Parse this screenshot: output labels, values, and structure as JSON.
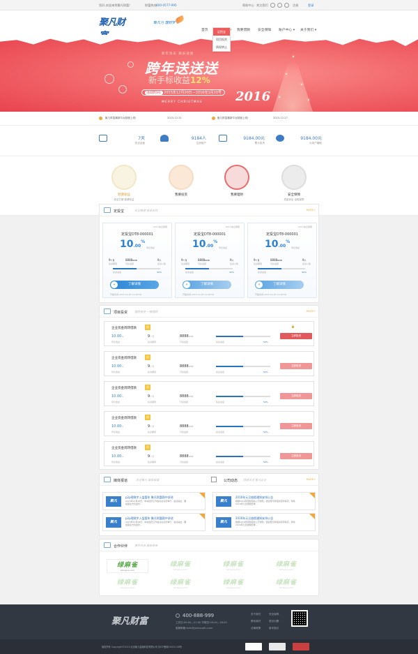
{
  "topbar": {
    "welcome": "您好,欢迎来到聚凡财富!",
    "hotline_label": "财富热线:",
    "hotline": "400-0577-995",
    "help": "帮助中心",
    "follow": "关注我们",
    "register": "注册",
    "login": "登录"
  },
  "header": {
    "logo": "聚凡财富",
    "logo_en": "JUFAN CAIFU.COM",
    "slogan": "聚凡力 理财梦",
    "menu": [
      "首页",
      "我要投资 ▾",
      "我要借款",
      "安全保障",
      "账户中心 ▾",
      "关于我们 ▾"
    ],
    "dropdown": [
      "定投宝",
      "项目投资",
      "债权转让"
    ]
  },
  "banner": {
    "small": "新年快乐 辞旧迎新",
    "title": "跨年送送送",
    "sub_prefix": "新手标收益",
    "sub_value": "12%",
    "date_label": "活动时间:",
    "date": "2015年12月20日—2016年1月20号",
    "merry": "MERRY CHRISTMAS",
    "year": "2016"
  },
  "notices": [
    {
      "text": "聚凡财富最新平台制度上线!",
      "date": "2015-12-31"
    },
    {
      "text": "聚凡财富最新平台制度上线!",
      "date": "2015-12-27"
    }
  ],
  "stats": [
    {
      "value": "7天",
      "label": "安全运营"
    },
    {
      "value": "9184人",
      "label": "注册用户"
    },
    {
      "value": "9184.00元",
      "label": "累计投资"
    },
    {
      "value": "9184.00元",
      "label": "为用户赚取"
    }
  ],
  "features": [
    {
      "title": "稳健收益",
      "desc": "安全方便 稳健收益",
      "icon": "chart-icon"
    },
    {
      "title": "我要投资",
      "desc": "",
      "icon": "coin-icon"
    },
    {
      "title": "我要理财",
      "desc": "",
      "icon": "clock-icon"
    },
    {
      "title": "安全保障",
      "desc": "资金安全 全程保障",
      "icon": "safe-icon"
    }
  ],
  "dingtou": {
    "title": "定投宝",
    "desc": "安全稳健 投资无忧",
    "more": "MORE+",
    "cards": [
      {
        "tag": "100%本息保障",
        "name": "定投宝DT8-000001",
        "rate": "10",
        "rate_dec": ".00",
        "rate_pct": "%",
        "rate_label": "年化收益",
        "term": "9",
        "term_unit": "个月",
        "amount": "8888",
        "amount_unit": "RMB",
        "people": "9",
        "people_unit": "人",
        "term_label": "投资期限",
        "amount_label": "可投金额",
        "people_label": "投资人数",
        "progress": 0.5,
        "pct": "50%",
        "progress_label": "投资进度",
        "btn": "了解详情",
        "time": "开始时间:2015-10-30 11:58:58"
      },
      {
        "tag": "100%本息保障",
        "name": "定投宝DT8-000001",
        "rate": "10",
        "rate_dec": ".00",
        "rate_pct": "%",
        "rate_label": "年化收益",
        "term": "9",
        "term_unit": "个月",
        "amount": "8888",
        "amount_unit": "RMB",
        "people": "9",
        "people_unit": "人",
        "term_label": "投资期限",
        "amount_label": "可投金额",
        "people_label": "投资人数",
        "progress": 0.5,
        "pct": "50%",
        "progress_label": "投资进度",
        "btn": "了解详情",
        "time": "开始时间:2015-10-30 11:58:58"
      },
      {
        "tag": "100%本息保障",
        "name": "定投宝DT8-000001",
        "rate": "10",
        "rate_dec": ".00",
        "rate_pct": "%",
        "rate_label": "年化收益",
        "term": "9",
        "term_unit": "个月",
        "amount": "8888",
        "amount_unit": "RMB",
        "people": "9",
        "people_unit": "人",
        "term_label": "投资期限",
        "amount_label": "可投金额",
        "people_label": "投资人数",
        "progress": 0.5,
        "pct": "50%",
        "progress_label": "投资进度",
        "btn": "了解详情",
        "time": "开始时间:2015-10-30 11:58:58"
      }
    ]
  },
  "projects": {
    "title": "项目投资",
    "desc": "理财投资 一键理财",
    "more": "MORE+",
    "rows": [
      {
        "name": "企业资金周转借款",
        "badge": "质",
        "rate": "10.00",
        "rate_unit": "%",
        "term": "9",
        "term_unit": "个月",
        "amount": "8888",
        "amount_unit": "RMB",
        "rate_label": "年化收益",
        "term_label": "投资期限",
        "amount_label": "可投金额",
        "progress_label": "投资进度",
        "progress": 0.5,
        "pct": "50%",
        "btn": "立即投资"
      },
      {
        "name": "企业资金周转借款",
        "badge": "质",
        "rate": "10.00",
        "rate_unit": "%",
        "term": "9",
        "term_unit": "个月",
        "amount": "8888",
        "amount_unit": "RMB",
        "rate_label": "年化收益",
        "term_label": "投资期限",
        "amount_label": "可投金额",
        "progress_label": "投资进度",
        "progress": 0.5,
        "pct": "50%",
        "btn": "立即投资"
      },
      {
        "name": "企业资金周转借款",
        "badge": "质",
        "rate": "10.00",
        "rate_unit": "%",
        "term": "9",
        "term_unit": "个月",
        "amount": "8888",
        "amount_unit": "RMB",
        "rate_label": "年化收益",
        "term_label": "投资期限",
        "amount_label": "可投金额",
        "progress_label": "投资进度",
        "progress": 0.5,
        "pct": "50%",
        "btn": "立即投资"
      },
      {
        "name": "企业资金周转借款",
        "badge": "质",
        "rate": "10.00",
        "rate_unit": "%",
        "term": "9",
        "term_unit": "个月",
        "amount": "8888",
        "amount_unit": "RMB",
        "rate_label": "年化收益",
        "term_label": "投资期限",
        "amount_label": "可投金额",
        "progress_label": "投资进度",
        "progress": 0.5,
        "pct": "50%",
        "btn": "立即投资"
      },
      {
        "name": "企业资金周转借款",
        "badge": "质",
        "rate": "10.00",
        "rate_unit": "%",
        "term": "9",
        "term_unit": "个月",
        "amount": "8888",
        "amount_unit": "RMB",
        "rate_label": "年化收益",
        "term_label": "投资期限",
        "amount_label": "可投金额",
        "progress_label": "投资进度",
        "progress": 0.5,
        "pct": "50%",
        "btn": "立即投资"
      }
    ]
  },
  "media": {
    "title": "媒体报道",
    "desc": "关注聚凡 媒体报道",
    "items": [
      {
        "title": "p2p理财步入监管年 聚凡财富稳中求进",
        "desc": "2015年12月28日，中央经济工作会议在北京举行，会议提出，要加强全方位监管…",
        "date": "2015-12-28"
      },
      {
        "title": "p2p理财步入监管年 聚凡财富稳中求进",
        "desc": "2015年12月28日，中央经济工作会议在北京举行，会议提出，要加强全方位监管…",
        "date": "2015-12-28"
      }
    ]
  },
  "company": {
    "title": "公司动态",
    "desc": "财经关注 聚凡企业",
    "more": "MORE+",
    "items": [
      {
        "title": "2016年元旦放假通知安排公告",
        "desc": "根据2016年国务院办公厅通知，结合聚凡财富的实际情况，现将2016年元旦放假安排…",
        "date": "2015-12-28"
      },
      {
        "title": "2016年元旦放假通知安排公告",
        "desc": "根据2016年国务院办公厅通知，结合聚凡财富的实际情况，现将2016年元旦放假安排…",
        "date": "2015-12-28"
      }
    ]
  },
  "partners": {
    "title": "合作伙伴",
    "desc": "携手共进 赢取未来",
    "name": "绿麻雀",
    "domain": "lvmaque.com"
  },
  "news_thumb": "聚凡",
  "footer": {
    "logo": "聚凡财富",
    "phone": "400-888-999",
    "hours": "工作日:09:00—21:00 节假日:09:00—18:00",
    "email": "客服邮箱:kefu@jufancaifu.com",
    "links": [
      "关于我们",
      "安全保障",
      "联系我们",
      "常见问题",
      "法律政策",
      "新手指引"
    ],
    "copyright": "版权所有 Copyright©2015 北京聚凡金融科技有限公司 京ICP备案14001158号"
  },
  "colors": {
    "primary": "#2d82cf",
    "banner": "#f26a6d",
    "invest": "#f19696",
    "footer": "#323842"
  }
}
